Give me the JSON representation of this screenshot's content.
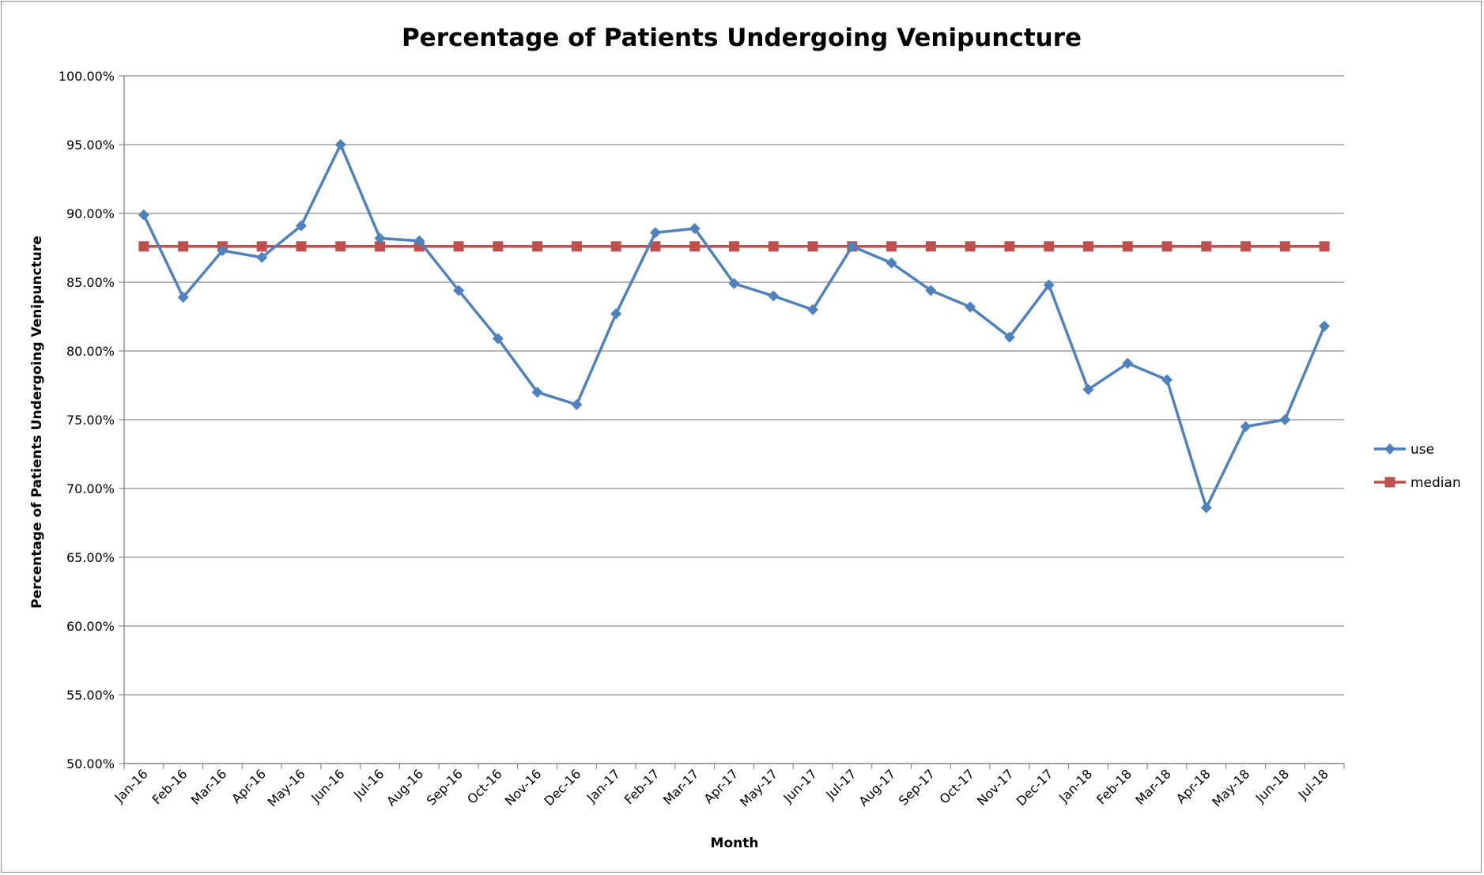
{
  "chart_data": {
    "type": "line",
    "title": "Percentage of Patients Undergoing Venipuncture",
    "xlabel": "Month",
    "ylabel": "Percentage of Patients Undergoing Venipuncture",
    "ylim": [
      50,
      100
    ],
    "y_tick_step": 5,
    "y_tick_labels": [
      "50.00%",
      "55.00%",
      "60.00%",
      "65.00%",
      "70.00%",
      "75.00%",
      "80.00%",
      "85.00%",
      "90.00%",
      "95.00%",
      "100.00%"
    ],
    "grid": true,
    "legend_position": "right",
    "categories": [
      "Jan-16",
      "Feb-16",
      "Mar-16",
      "Apr-16",
      "May-16",
      "Jun-16",
      "Jul-16",
      "Aug-16",
      "Sep-16",
      "Oct-16",
      "Nov-16",
      "Dec-16",
      "Jan-17",
      "Feb-17",
      "Mar-17",
      "Apr-17",
      "May-17",
      "Jun-17",
      "Jul-17",
      "Aug-17",
      "Sep-17",
      "Oct-17",
      "Nov-17",
      "Dec-17",
      "Jan-18",
      "Feb-18",
      "Mar-18",
      "Apr-18",
      "May-18",
      "Jun-18",
      "Jul-18"
    ],
    "series": [
      {
        "name": "use",
        "color": "#4f81bd",
        "marker": "diamond",
        "values": [
          89.9,
          83.9,
          87.3,
          86.8,
          89.1,
          95.0,
          88.2,
          88.0,
          84.4,
          80.9,
          77.0,
          76.1,
          82.7,
          88.6,
          88.9,
          84.9,
          84.0,
          83.0,
          87.6,
          86.4,
          84.4,
          83.2,
          81.0,
          84.8,
          77.2,
          79.1,
          77.9,
          68.6,
          74.5,
          75.0,
          81.8
        ]
      },
      {
        "name": "median",
        "color": "#c0504d",
        "marker": "square",
        "values": [
          87.6,
          87.6,
          87.6,
          87.6,
          87.6,
          87.6,
          87.6,
          87.6,
          87.6,
          87.6,
          87.6,
          87.6,
          87.6,
          87.6,
          87.6,
          87.6,
          87.6,
          87.6,
          87.6,
          87.6,
          87.6,
          87.6,
          87.6,
          87.6,
          87.6,
          87.6,
          87.6,
          87.6,
          87.6,
          87.6,
          87.6
        ]
      }
    ]
  }
}
